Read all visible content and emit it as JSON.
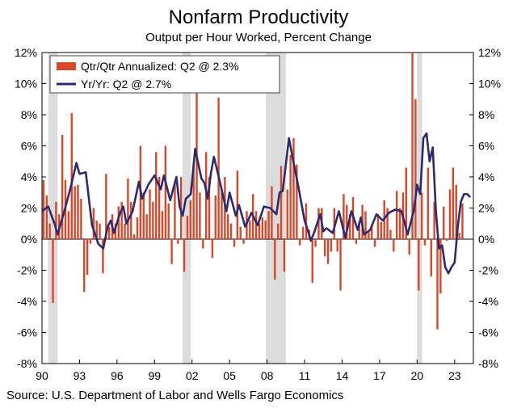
{
  "chart_data": {
    "type": "bar",
    "title": "Nonfarm Productivity",
    "subtitle": "Output per Hour Worked, Percent Change",
    "source": "Source: U.S. Department of Labor and Wells Fargo Economics",
    "ylim": [
      -8,
      12
    ],
    "yticks_left": [
      "12%",
      "10%",
      "8%",
      "6%",
      "4%",
      "2%",
      "0%",
      "-2%",
      "-4%",
      "-6%",
      "-8%"
    ],
    "yticks_right": [
      "12%",
      "10%",
      "8%",
      "6%",
      "4%",
      "2%",
      "0%",
      "-2%",
      "-4%",
      "-6%",
      "-8%"
    ],
    "ytick_values": [
      12,
      10,
      8,
      6,
      4,
      2,
      0,
      -2,
      -4,
      -6,
      -8
    ],
    "x_start_year": 1990,
    "x_end_year": 2024.5,
    "xticks": [
      {
        "year": 1990,
        "label": "90"
      },
      {
        "year": 1993,
        "label": "93"
      },
      {
        "year": 1996,
        "label": "96"
      },
      {
        "year": 1999,
        "label": "99"
      },
      {
        "year": 2002,
        "label": "02"
      },
      {
        "year": 2005,
        "label": "05"
      },
      {
        "year": 2008,
        "label": "08"
      },
      {
        "year": 2011,
        "label": "11"
      },
      {
        "year": 2014,
        "label": "14"
      },
      {
        "year": 2017,
        "label": "17"
      },
      {
        "year": 2020,
        "label": "20"
      },
      {
        "year": 2023,
        "label": "23"
      }
    ],
    "recessions": [
      [
        1990.5,
        1991.25
      ],
      [
        2001.25,
        2001.9
      ],
      [
        2007.9,
        2009.5
      ],
      [
        2020.0,
        2020.4
      ]
    ],
    "legend": [
      {
        "label": "Qtr/Qtr Annualized: Q2 @ 2.3%",
        "color": "#d9472b",
        "kind": "bar"
      },
      {
        "label": "Yr/Yr: Q2 @ 2.7%",
        "color": "#2f2a6b",
        "kind": "line"
      }
    ],
    "series": [
      {
        "name": "Qtr/Qtr Annualized",
        "color": "#d9472b",
        "values": [
          3.8,
          2.8,
          1.0,
          -4.1,
          2.4,
          1.6,
          6.7,
          3.8,
          1.8,
          8.1,
          3.4,
          3.5,
          2.6,
          -3.4,
          -2.3,
          -0.3,
          2.0,
          1.2,
          1.0,
          -2.2,
          4.2,
          0.8,
          1.6,
          1.0,
          2.1,
          2.4,
          1.0,
          3.9,
          2.4,
          0.3,
          1.4,
          6.0,
          3.0,
          1.6,
          3.2,
          2.4,
          5.6,
          4.0,
          1.8,
          6.0,
          2.3,
          -1.6,
          3.6,
          -0.3,
          4.0,
          -2.1,
          1.5,
          2.5,
          5.0,
          10.0,
          3.0,
          -0.6,
          5.6,
          4.0,
          -1.2,
          2.8,
          9.1,
          3.0,
          4.0,
          1.6,
          1.0,
          -0.5,
          4.4,
          0.8,
          -0.3,
          1.8,
          1.2,
          2.9,
          1.8,
          1.0,
          1.4,
          1.2,
          1.8,
          3.4,
          -2.6,
          1.0,
          4.7,
          -2.1,
          3.2,
          5.4,
          6.5,
          4.8,
          -0.4,
          0.8,
          2.3,
          0.6,
          -2.8,
          -0.5,
          2.0,
          2.0,
          -1.1,
          -1.6,
          -0.8,
          2.0,
          -0.8,
          -3.3,
          2.9,
          2.2,
          1.6,
          2.7,
          -0.3,
          1.1,
          2.2,
          1.8,
          0.5,
          0.8,
          -0.5,
          1.6,
          1.1,
          2.5,
          2.0,
          0.6,
          -0.8,
          3.1,
          2.0,
          3.0,
          4.6,
          -1.0,
          12.0,
          9.0,
          -3.3,
          3.0,
          -0.4,
          4.6,
          -2.4,
          2.4,
          -5.8,
          -3.5,
          2.1,
          -0.1,
          3.2,
          4.6,
          3.5,
          0.4,
          2.3
        ],
        "start_year": 1990.0,
        "step": 0.25
      },
      {
        "name": "Yr/Yr",
        "color": "#2f2a6b",
        "points": [
          [
            1990.0,
            1.8
          ],
          [
            1990.5,
            2.1
          ],
          [
            1991.0,
            1.0
          ],
          [
            1991.25,
            0.3
          ],
          [
            1991.75,
            1.7
          ],
          [
            1992.25,
            3.2
          ],
          [
            1992.75,
            4.9
          ],
          [
            1993.0,
            4.2
          ],
          [
            1993.5,
            4.3
          ],
          [
            1994.0,
            0.9
          ],
          [
            1994.5,
            -0.3
          ],
          [
            1994.9,
            -0.6
          ],
          [
            1995.25,
            0.8
          ],
          [
            1995.5,
            1.2
          ],
          [
            1995.75,
            0.4
          ],
          [
            1996.25,
            1.7
          ],
          [
            1996.5,
            2.1
          ],
          [
            1996.75,
            1.0
          ],
          [
            1997.25,
            1.8
          ],
          [
            1997.75,
            3.7
          ],
          [
            1998.0,
            2.6
          ],
          [
            1998.5,
            3.5
          ],
          [
            1999.0,
            4.1
          ],
          [
            1999.5,
            3.2
          ],
          [
            1999.75,
            4.1
          ],
          [
            2000.25,
            2.5
          ],
          [
            2000.75,
            4.0
          ],
          [
            2001.0,
            2.1
          ],
          [
            2001.25,
            1.5
          ],
          [
            2001.5,
            2.6
          ],
          [
            2001.9,
            2.9
          ],
          [
            2002.25,
            5.8
          ],
          [
            2002.75,
            3.9
          ],
          [
            2003.0,
            3.6
          ],
          [
            2003.25,
            2.6
          ],
          [
            2003.5,
            4.2
          ],
          [
            2003.75,
            5.3
          ],
          [
            2004.25,
            3.6
          ],
          [
            2004.75,
            1.8
          ],
          [
            2005.0,
            3.0
          ],
          [
            2005.5,
            1.5
          ],
          [
            2005.75,
            2.2
          ],
          [
            2006.25,
            0.8
          ],
          [
            2006.75,
            1.7
          ],
          [
            2007.25,
            0.9
          ],
          [
            2007.75,
            2.1
          ],
          [
            2008.25,
            2.0
          ],
          [
            2008.75,
            1.6
          ],
          [
            2009.0,
            3.0
          ],
          [
            2009.25,
            3.1
          ],
          [
            2009.75,
            6.5
          ],
          [
            2010.0,
            5.4
          ],
          [
            2010.5,
            3.4
          ],
          [
            2011.0,
            1.2
          ],
          [
            2011.25,
            0.6
          ],
          [
            2011.5,
            -0.1
          ],
          [
            2011.75,
            0.4
          ],
          [
            2012.25,
            1.6
          ],
          [
            2012.5,
            0.5
          ],
          [
            2012.75,
            0.7
          ],
          [
            2013.25,
            0.4
          ],
          [
            2013.75,
            1.8
          ],
          [
            2014.25,
            0.1
          ],
          [
            2014.75,
            1.8
          ],
          [
            2015.25,
            0.6
          ],
          [
            2015.5,
            1.4
          ],
          [
            2015.75,
            0.3
          ],
          [
            2016.25,
            0.6
          ],
          [
            2016.75,
            1.6
          ],
          [
            2017.25,
            1.2
          ],
          [
            2017.75,
            1.7
          ],
          [
            2018.25,
            1.9
          ],
          [
            2018.75,
            1.8
          ],
          [
            2019.25,
            0.3
          ],
          [
            2019.75,
            1.9
          ],
          [
            2020.0,
            3.5
          ],
          [
            2020.25,
            2.9
          ],
          [
            2020.5,
            6.5
          ],
          [
            2020.75,
            6.8
          ],
          [
            2021.0,
            5.0
          ],
          [
            2021.25,
            5.9
          ],
          [
            2021.5,
            1.8
          ],
          [
            2021.75,
            -0.6
          ],
          [
            2022.0,
            -0.4
          ],
          [
            2022.25,
            -1.8
          ],
          [
            2022.5,
            -2.2
          ],
          [
            2022.75,
            -1.8
          ],
          [
            2023.0,
            -1.5
          ],
          [
            2023.25,
            0.8
          ],
          [
            2023.5,
            2.4
          ],
          [
            2023.75,
            2.9
          ],
          [
            2024.0,
            2.9
          ],
          [
            2024.25,
            2.7
          ]
        ]
      }
    ]
  }
}
